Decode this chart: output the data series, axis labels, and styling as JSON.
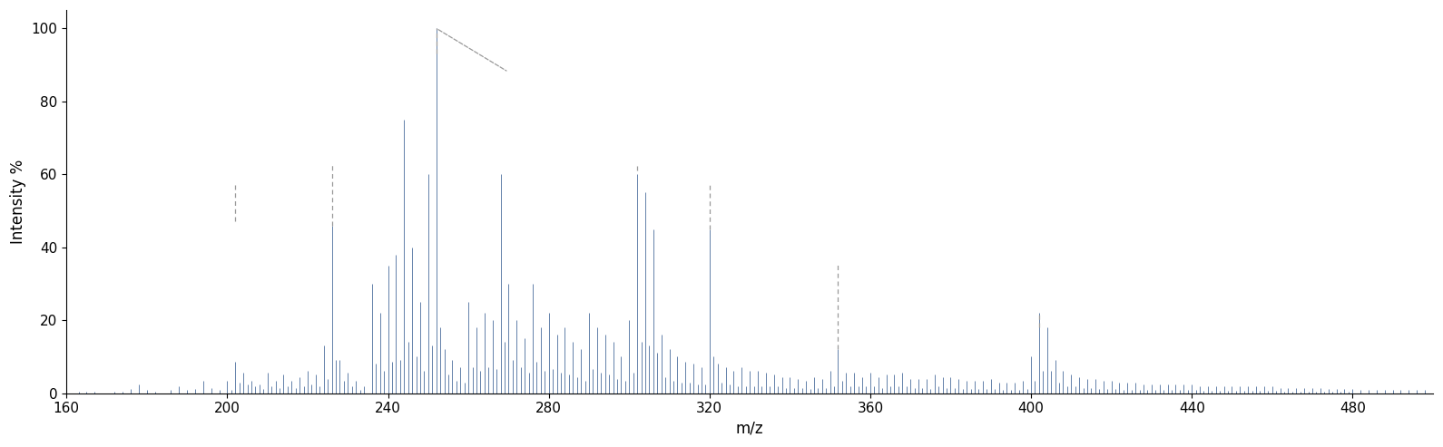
{
  "xlabel": "m/z",
  "ylabel": "Intensity %",
  "xlim": [
    160,
    500
  ],
  "ylim": [
    0,
    105
  ],
  "xticks": [
    160,
    200,
    240,
    280,
    320,
    360,
    400,
    440,
    480
  ],
  "yticks": [
    0,
    20,
    40,
    60,
    80,
    100
  ],
  "line_color": "#5878a4",
  "dashed_color": "#999999",
  "background_color": "#ffffff",
  "peaks": [
    [
      163,
      0.5
    ],
    [
      165,
      0.5
    ],
    [
      167,
      0.4
    ],
    [
      172,
      0.3
    ],
    [
      174,
      0.3
    ],
    [
      176,
      1.2
    ],
    [
      178,
      2.5
    ],
    [
      180,
      1.0
    ],
    [
      182,
      0.5
    ],
    [
      186,
      1.0
    ],
    [
      188,
      1.8
    ],
    [
      190,
      0.8
    ],
    [
      192,
      1.2
    ],
    [
      194,
      3.5
    ],
    [
      196,
      1.5
    ],
    [
      198,
      1.0
    ],
    [
      200,
      3.5
    ],
    [
      201,
      1.0
    ],
    [
      202,
      8.5
    ],
    [
      203,
      3.0
    ],
    [
      204,
      5.5
    ],
    [
      205,
      2.5
    ],
    [
      206,
      3.5
    ],
    [
      207,
      2.0
    ],
    [
      208,
      2.5
    ],
    [
      209,
      1.2
    ],
    [
      210,
      5.5
    ],
    [
      211,
      1.8
    ],
    [
      212,
      3.5
    ],
    [
      213,
      1.5
    ],
    [
      214,
      5.0
    ],
    [
      215,
      2.0
    ],
    [
      216,
      3.5
    ],
    [
      217,
      1.5
    ],
    [
      218,
      4.5
    ],
    [
      219,
      2.0
    ],
    [
      220,
      6.0
    ],
    [
      221,
      2.5
    ],
    [
      222,
      5.0
    ],
    [
      223,
      2.0
    ],
    [
      224,
      13.0
    ],
    [
      225,
      4.0
    ],
    [
      226,
      46.0
    ],
    [
      227,
      9.0
    ],
    [
      228,
      9.0
    ],
    [
      229,
      3.5
    ],
    [
      230,
      5.5
    ],
    [
      231,
      2.0
    ],
    [
      232,
      3.5
    ],
    [
      233,
      1.0
    ],
    [
      234,
      2.0
    ],
    [
      236,
      30.0
    ],
    [
      237,
      8.0
    ],
    [
      238,
      22.0
    ],
    [
      239,
      6.0
    ],
    [
      240,
      35.0
    ],
    [
      241,
      8.5
    ],
    [
      242,
      38.0
    ],
    [
      243,
      9.0
    ],
    [
      244,
      75.0
    ],
    [
      245,
      14.0
    ],
    [
      246,
      40.0
    ],
    [
      247,
      10.0
    ],
    [
      248,
      25.0
    ],
    [
      249,
      6.0
    ],
    [
      250,
      60.0
    ],
    [
      251,
      13.0
    ],
    [
      252,
      100.0
    ],
    [
      253,
      18.0
    ],
    [
      254,
      12.0
    ],
    [
      255,
      5.0
    ],
    [
      256,
      9.0
    ],
    [
      257,
      3.5
    ],
    [
      258,
      7.0
    ],
    [
      259,
      3.0
    ],
    [
      260,
      25.0
    ],
    [
      261,
      7.0
    ],
    [
      262,
      18.0
    ],
    [
      263,
      6.0
    ],
    [
      264,
      22.0
    ],
    [
      265,
      7.0
    ],
    [
      266,
      20.0
    ],
    [
      267,
      6.5
    ],
    [
      268,
      60.0
    ],
    [
      269,
      14.0
    ],
    [
      270,
      30.0
    ],
    [
      271,
      9.0
    ],
    [
      272,
      20.0
    ],
    [
      273,
      7.0
    ],
    [
      274,
      15.0
    ],
    [
      275,
      5.5
    ],
    [
      276,
      30.0
    ],
    [
      277,
      8.5
    ],
    [
      278,
      18.0
    ],
    [
      279,
      6.0
    ],
    [
      280,
      22.0
    ],
    [
      281,
      6.5
    ],
    [
      282,
      16.0
    ],
    [
      283,
      5.5
    ],
    [
      284,
      18.0
    ],
    [
      285,
      5.0
    ],
    [
      286,
      14.0
    ],
    [
      287,
      4.5
    ],
    [
      288,
      12.0
    ],
    [
      289,
      3.5
    ],
    [
      290,
      22.0
    ],
    [
      291,
      6.5
    ],
    [
      292,
      18.0
    ],
    [
      293,
      5.5
    ],
    [
      294,
      16.0
    ],
    [
      295,
      5.0
    ],
    [
      296,
      14.0
    ],
    [
      297,
      4.0
    ],
    [
      298,
      10.0
    ],
    [
      299,
      3.5
    ],
    [
      300,
      20.0
    ],
    [
      301,
      5.5
    ],
    [
      302,
      60.0
    ],
    [
      303,
      14.0
    ],
    [
      304,
      55.0
    ],
    [
      305,
      13.0
    ],
    [
      306,
      45.0
    ],
    [
      307,
      11.0
    ],
    [
      308,
      16.0
    ],
    [
      309,
      4.5
    ],
    [
      310,
      12.0
    ],
    [
      311,
      3.5
    ],
    [
      312,
      10.0
    ],
    [
      313,
      3.0
    ],
    [
      314,
      8.5
    ],
    [
      315,
      3.0
    ],
    [
      316,
      8.0
    ],
    [
      317,
      2.5
    ],
    [
      318,
      7.0
    ],
    [
      319,
      2.5
    ],
    [
      320,
      45.0
    ],
    [
      321,
      10.0
    ],
    [
      322,
      8.0
    ],
    [
      323,
      3.0
    ],
    [
      324,
      7.0
    ],
    [
      325,
      2.5
    ],
    [
      326,
      6.0
    ],
    [
      327,
      2.0
    ],
    [
      328,
      7.0
    ],
    [
      329,
      2.0
    ],
    [
      330,
      6.0
    ],
    [
      331,
      2.0
    ],
    [
      332,
      6.0
    ],
    [
      333,
      2.0
    ],
    [
      334,
      5.5
    ],
    [
      335,
      1.8
    ],
    [
      336,
      5.0
    ],
    [
      337,
      1.8
    ],
    [
      338,
      4.5
    ],
    [
      339,
      1.5
    ],
    [
      340,
      4.5
    ],
    [
      341,
      1.5
    ],
    [
      342,
      4.0
    ],
    [
      343,
      1.5
    ],
    [
      344,
      3.5
    ],
    [
      345,
      1.2
    ],
    [
      346,
      4.5
    ],
    [
      347,
      1.5
    ],
    [
      348,
      4.0
    ],
    [
      349,
      1.5
    ],
    [
      350,
      6.0
    ],
    [
      351,
      2.0
    ],
    [
      352,
      12.0
    ],
    [
      353,
      3.5
    ],
    [
      354,
      5.5
    ],
    [
      355,
      1.8
    ],
    [
      356,
      5.5
    ],
    [
      357,
      2.0
    ],
    [
      358,
      4.5
    ],
    [
      359,
      1.8
    ],
    [
      360,
      5.5
    ],
    [
      361,
      2.0
    ],
    [
      362,
      4.5
    ],
    [
      363,
      1.5
    ],
    [
      364,
      5.0
    ],
    [
      365,
      1.8
    ],
    [
      366,
      5.0
    ],
    [
      367,
      1.8
    ],
    [
      368,
      5.5
    ],
    [
      369,
      2.0
    ],
    [
      370,
      4.0
    ],
    [
      371,
      1.5
    ],
    [
      372,
      4.0
    ],
    [
      373,
      1.5
    ],
    [
      374,
      4.0
    ],
    [
      375,
      1.2
    ],
    [
      376,
      5.0
    ],
    [
      377,
      1.8
    ],
    [
      378,
      4.5
    ],
    [
      379,
      1.5
    ],
    [
      380,
      4.5
    ],
    [
      381,
      1.5
    ],
    [
      382,
      4.0
    ],
    [
      383,
      1.2
    ],
    [
      384,
      3.5
    ],
    [
      385,
      1.2
    ],
    [
      386,
      3.5
    ],
    [
      387,
      1.2
    ],
    [
      388,
      3.5
    ],
    [
      389,
      1.2
    ],
    [
      390,
      4.0
    ],
    [
      391,
      1.2
    ],
    [
      392,
      3.0
    ],
    [
      393,
      1.0
    ],
    [
      394,
      3.0
    ],
    [
      395,
      1.0
    ],
    [
      396,
      3.0
    ],
    [
      397,
      1.0
    ],
    [
      398,
      3.5
    ],
    [
      399,
      1.2
    ],
    [
      400,
      10.0
    ],
    [
      401,
      3.5
    ],
    [
      402,
      22.0
    ],
    [
      403,
      6.0
    ],
    [
      404,
      18.0
    ],
    [
      405,
      6.0
    ],
    [
      406,
      9.0
    ],
    [
      407,
      3.0
    ],
    [
      408,
      6.0
    ],
    [
      409,
      2.0
    ],
    [
      410,
      5.0
    ],
    [
      411,
      1.8
    ],
    [
      412,
      4.5
    ],
    [
      413,
      1.5
    ],
    [
      414,
      4.0
    ],
    [
      415,
      1.5
    ],
    [
      416,
      4.0
    ],
    [
      417,
      1.2
    ],
    [
      418,
      3.5
    ],
    [
      419,
      1.2
    ],
    [
      420,
      3.5
    ],
    [
      421,
      1.2
    ],
    [
      422,
      3.0
    ],
    [
      423,
      1.0
    ],
    [
      424,
      3.0
    ],
    [
      425,
      1.0
    ],
    [
      426,
      3.0
    ],
    [
      427,
      1.0
    ],
    [
      428,
      2.5
    ],
    [
      429,
      0.8
    ],
    [
      430,
      2.5
    ],
    [
      431,
      0.8
    ],
    [
      432,
      2.5
    ],
    [
      433,
      0.8
    ],
    [
      434,
      2.5
    ],
    [
      435,
      0.8
    ],
    [
      436,
      2.5
    ],
    [
      437,
      0.8
    ],
    [
      438,
      2.5
    ],
    [
      439,
      0.8
    ],
    [
      440,
      2.5
    ],
    [
      441,
      0.8
    ],
    [
      442,
      2.0
    ],
    [
      443,
      0.7
    ],
    [
      444,
      2.0
    ],
    [
      445,
      0.7
    ],
    [
      446,
      2.0
    ],
    [
      447,
      0.7
    ],
    [
      448,
      2.0
    ],
    [
      449,
      0.7
    ],
    [
      450,
      2.0
    ],
    [
      451,
      0.7
    ],
    [
      452,
      2.0
    ],
    [
      453,
      0.7
    ],
    [
      454,
      1.8
    ],
    [
      455,
      0.6
    ],
    [
      456,
      1.8
    ],
    [
      457,
      0.6
    ],
    [
      458,
      1.8
    ],
    [
      459,
      0.6
    ],
    [
      460,
      1.8
    ],
    [
      461,
      0.6
    ],
    [
      462,
      1.5
    ],
    [
      463,
      0.5
    ],
    [
      464,
      1.5
    ],
    [
      465,
      0.5
    ],
    [
      466,
      1.5
    ],
    [
      467,
      0.5
    ],
    [
      468,
      1.5
    ],
    [
      469,
      0.5
    ],
    [
      470,
      1.5
    ],
    [
      471,
      0.5
    ],
    [
      472,
      1.5
    ],
    [
      473,
      0.5
    ],
    [
      474,
      1.2
    ],
    [
      475,
      0.4
    ],
    [
      476,
      1.2
    ],
    [
      477,
      0.4
    ],
    [
      478,
      1.2
    ],
    [
      479,
      0.4
    ],
    [
      480,
      1.2
    ],
    [
      482,
      1.0
    ],
    [
      484,
      1.0
    ],
    [
      486,
      1.0
    ],
    [
      488,
      0.8
    ],
    [
      490,
      0.8
    ],
    [
      492,
      0.8
    ],
    [
      494,
      0.8
    ],
    [
      496,
      0.8
    ],
    [
      498,
      0.8
    ]
  ],
  "dashed_lines": [
    {
      "x": 202,
      "y1": 9,
      "y2": 57
    },
    {
      "x": 226,
      "y1": 46,
      "y2": 62
    },
    {
      "x": 252,
      "y1": 100,
      "y2": 92
    },
    {
      "x": 302,
      "y1": 60,
      "y2": 62
    },
    {
      "x": 320,
      "y1": 45,
      "y2": 55
    },
    {
      "x": 352,
      "y1": 12,
      "y2": 35
    },
    {
      "x": 402,
      "y1": 22,
      "y2": 18
    }
  ]
}
